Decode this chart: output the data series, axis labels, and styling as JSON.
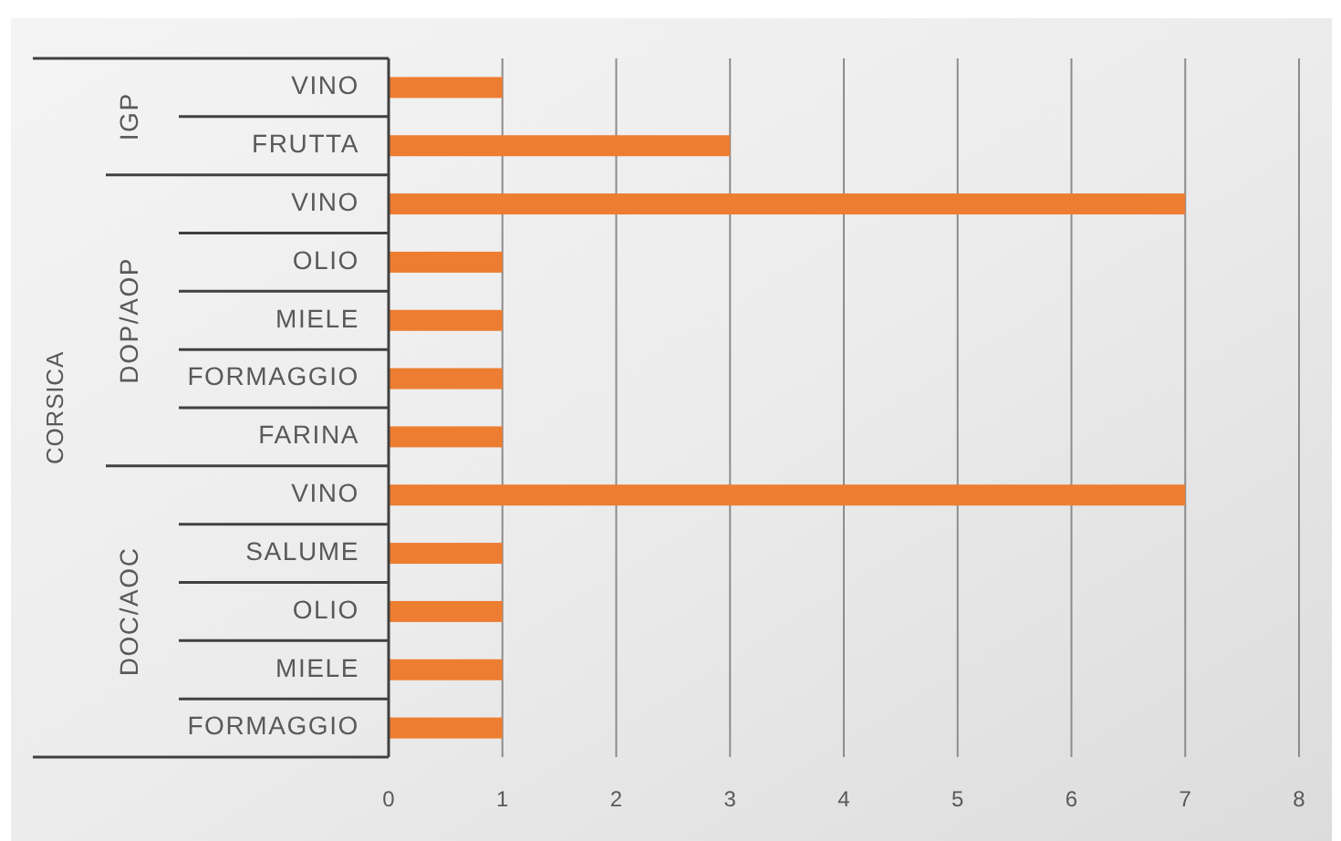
{
  "chart_data": {
    "type": "bar",
    "orientation": "horizontal",
    "stacked": true,
    "categories": [
      "VINO",
      "FRUTTA",
      "VINO",
      "OLIO",
      "MIELE",
      "FORMAGGIO",
      "FARINA",
      "VINO",
      "SALUME",
      "OLIO",
      "MIELE",
      "FORMAGGIO"
    ],
    "series": [
      {
        "color": "#ed7d31",
        "values": [
          1,
          3,
          null,
          null,
          null,
          null,
          null,
          null,
          null,
          null,
          null,
          null
        ]
      },
      {
        "color": "#ed7d31",
        "values": [
          null,
          null,
          7,
          1,
          1,
          1,
          1,
          null,
          null,
          null,
          null,
          null
        ]
      },
      {
        "color": "#ed7d31",
        "values": [
          null,
          null,
          null,
          null,
          null,
          null,
          null,
          7,
          1,
          1,
          1,
          1
        ]
      }
    ],
    "annotations": [
      "CORSICA",
      "IGP",
      "DOP/AOP",
      "DOC/AOC"
    ],
    "xlim": [
      0,
      8
    ],
    "xticks": [
      0,
      1,
      2,
      3,
      4,
      5,
      6,
      7,
      8
    ],
    "grid": "x"
  }
}
